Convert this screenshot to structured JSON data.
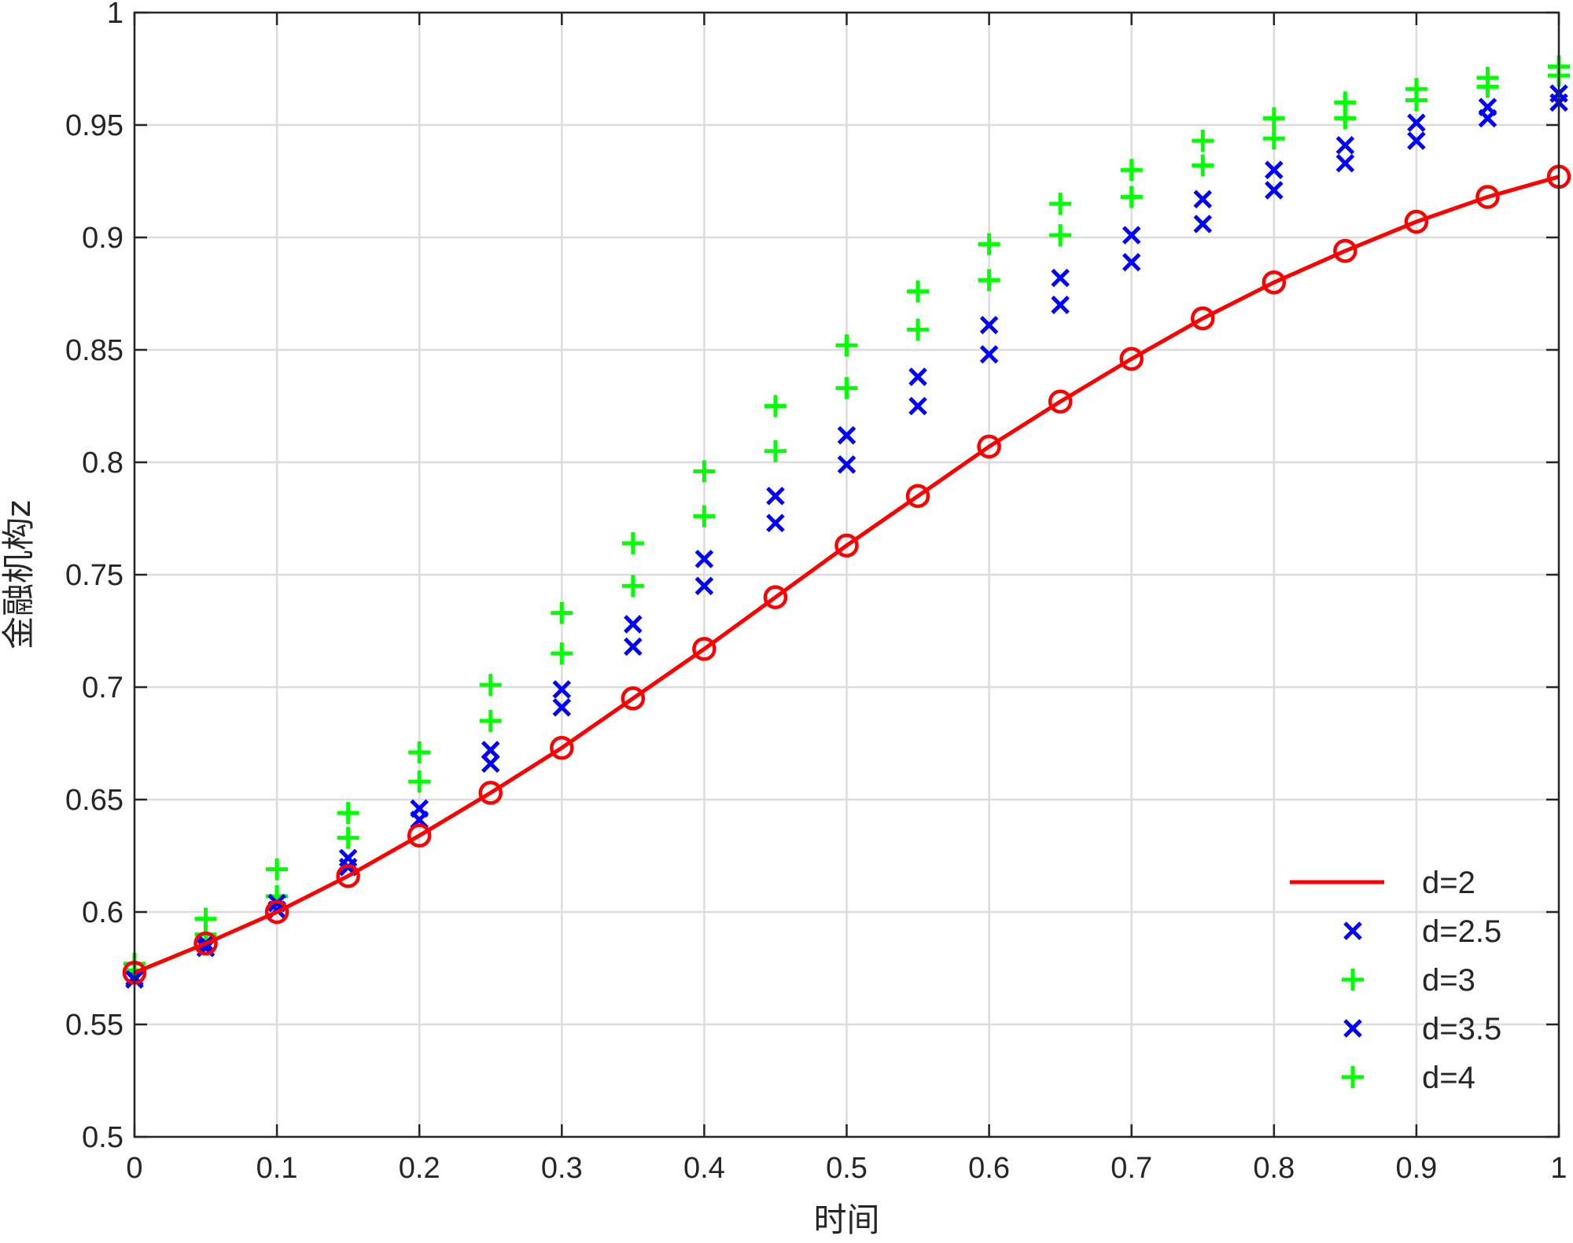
{
  "chart_data": {
    "type": "line",
    "xlabel": "时间",
    "ylabel": "金融机构z",
    "xlim": [
      0,
      1
    ],
    "ylim": [
      0.5,
      1
    ],
    "grid": true,
    "legend_position": "bottom-right",
    "x_ticks": [
      "0",
      "0.1",
      "0.2",
      "0.3",
      "0.4",
      "0.5",
      "0.6",
      "0.7",
      "0.8",
      "0.9",
      "1"
    ],
    "y_ticks": [
      "0.5",
      "0.55",
      "0.6",
      "0.65",
      "0.7",
      "0.75",
      "0.8",
      "0.85",
      "0.9",
      "0.95",
      "1"
    ],
    "x": [
      0,
      0.05,
      0.1,
      0.15,
      0.2,
      0.25,
      0.3,
      0.35,
      0.4,
      0.45,
      0.5,
      0.55,
      0.6,
      0.65,
      0.7,
      0.75,
      0.8,
      0.85,
      0.9,
      0.95,
      1
    ],
    "series": [
      {
        "name": "d=2",
        "style": "line-circle",
        "color": "#ff0000",
        "values": [
          0.573,
          0.586,
          0.6,
          0.616,
          0.634,
          0.653,
          0.673,
          0.695,
          0.717,
          0.74,
          0.763,
          0.785,
          0.807,
          0.827,
          0.846,
          0.864,
          0.88,
          0.894,
          0.907,
          0.918,
          0.927
        ]
      },
      {
        "name": "d=2.5",
        "style": "x",
        "color": "#0000ff",
        "values": [
          0.571,
          0.584,
          0.601,
          0.62,
          0.641,
          0.666,
          0.691,
          0.718,
          0.745,
          0.773,
          0.799,
          0.825,
          0.848,
          0.87,
          0.889,
          0.906,
          0.921,
          0.933,
          0.943,
          0.953,
          0.96
        ]
      },
      {
        "name": "d=3",
        "style": "plus",
        "color": "#00ff00",
        "values": [
          0.574,
          0.59,
          0.607,
          0.633,
          0.658,
          0.685,
          0.715,
          0.745,
          0.776,
          0.805,
          0.833,
          0.859,
          0.881,
          0.901,
          0.918,
          0.932,
          0.944,
          0.953,
          0.961,
          0.967,
          0.972
        ]
      },
      {
        "name": "d=3.5",
        "style": "x",
        "color": "#0000ff",
        "values": [
          0.57,
          0.586,
          0.604,
          0.624,
          0.646,
          0.672,
          0.699,
          0.728,
          0.757,
          0.785,
          0.812,
          0.838,
          0.861,
          0.882,
          0.901,
          0.917,
          0.93,
          0.941,
          0.951,
          0.958,
          0.964
        ]
      },
      {
        "name": "d=4",
        "style": "plus",
        "color": "#00ff00",
        "values": [
          0.577,
          0.597,
          0.619,
          0.644,
          0.671,
          0.701,
          0.733,
          0.764,
          0.796,
          0.825,
          0.852,
          0.876,
          0.897,
          0.915,
          0.93,
          0.943,
          0.953,
          0.96,
          0.966,
          0.971,
          0.976
        ]
      }
    ]
  }
}
